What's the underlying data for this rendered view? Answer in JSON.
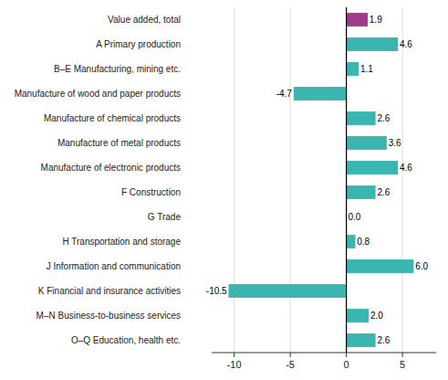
{
  "chart_data": {
    "type": "bar",
    "orientation": "horizontal",
    "categories": [
      "Value added, total",
      "A Primary production",
      "B–E Manufacturing, mining etc.",
      "Manufacture of wood and paper products",
      "Manufacture of chemical products",
      "Manufacture of metal products",
      "Manufacture of electronic products",
      "F Construction",
      "G Trade",
      "H Transportation and storage",
      "J Information and communication",
      "K Financial and insurance activities",
      "M–N Business-to-business services",
      "O–Q Education, health etc."
    ],
    "values": [
      1.9,
      4.6,
      1.1,
      -4.7,
      2.6,
      3.6,
      4.6,
      2.6,
      0.0,
      0.8,
      6.0,
      -10.5,
      2.0,
      2.6
    ],
    "value_labels": [
      "1.9",
      "4.6",
      "1.1",
      "-4.7",
      "2.6",
      "3.6",
      "4.6",
      "2.6",
      "0.0",
      "0.8",
      "6.0",
      "-10.5",
      "2.0",
      "2.6"
    ],
    "colors": [
      "#9b3c8c",
      "#3ab5b0",
      "#3ab5b0",
      "#3ab5b0",
      "#3ab5b0",
      "#3ab5b0",
      "#3ab5b0",
      "#3ab5b0",
      "#3ab5b0",
      "#3ab5b0",
      "#3ab5b0",
      "#3ab5b0",
      "#3ab5b0",
      "#3ab5b0"
    ],
    "xlim": [
      -12,
      8
    ],
    "xticks": [
      -10,
      -5,
      0,
      5
    ],
    "grid": true,
    "data_labels": true
  }
}
